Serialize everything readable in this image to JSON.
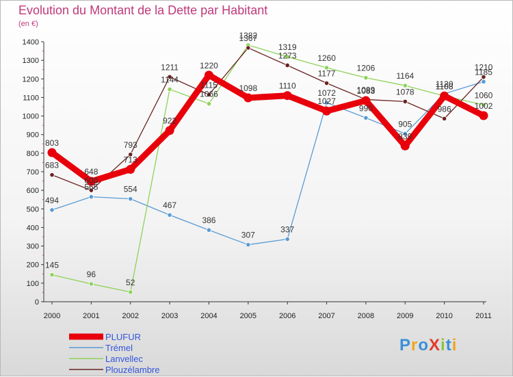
{
  "title": "Evolution du Montant de la Dette par Habitant",
  "unit": "(en €)",
  "logo": {
    "text": "ProXiti",
    "colors": [
      "#3a8fd8",
      "#f2a51a",
      "#3a8fd8",
      "#e03b2b",
      "#8bc53f",
      "#3a8fd8",
      "#f2a51a"
    ]
  },
  "chart_data": {
    "type": "line",
    "title": "Evolution du Montant de la Dette par Habitant",
    "ylabel": "(en €)",
    "xlabel": "",
    "x": [
      "2000",
      "2001",
      "2002",
      "2003",
      "2004",
      "2005",
      "2006",
      "2007",
      "2008",
      "2009",
      "2010",
      "2011"
    ],
    "ylim": [
      0,
      1400
    ],
    "yticks": [
      0,
      100,
      200,
      300,
      400,
      500,
      600,
      700,
      800,
      900,
      1000,
      1100,
      1200,
      1300,
      1400
    ],
    "grid": false,
    "legend_position": "bottom-left",
    "series": [
      {
        "name": "PLUFUR",
        "color": "#e8000b",
        "values": [
          803,
          648,
          713,
          922,
          1220,
          1098,
          1110,
          1027,
          1083,
          839,
          1108,
          1002
        ]
      },
      {
        "name": "Trémel",
        "color": "#5a9bd4",
        "values": [
          494,
          565,
          554,
          467,
          386,
          307,
          337,
          1072,
          990,
          905,
          1120,
          1185
        ]
      },
      {
        "name": "Lanvellec",
        "color": "#8ed25a",
        "values": [
          145,
          96,
          52,
          1144,
          1066,
          1382,
          1319,
          1260,
          1206,
          1164,
          1108,
          1060
        ]
      },
      {
        "name": "Plouzélambre",
        "color": "#6b2222",
        "values": [
          683,
          600,
          793,
          1211,
          1115,
          1367,
          1273,
          1177,
          1089,
          1078,
          986,
          1210
        ]
      }
    ]
  }
}
